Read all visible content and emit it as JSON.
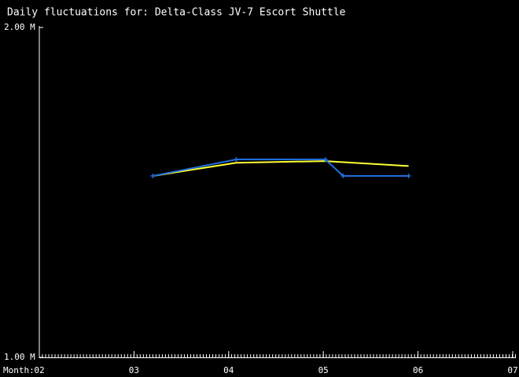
{
  "chart_data": {
    "type": "line",
    "title": "Daily fluctuations for: Delta-Class JV-7 Escort Shuttle",
    "xlabel": "Month:",
    "xlim": [
      2,
      7
    ],
    "xticks": [
      {
        "value": 2,
        "label": "02"
      },
      {
        "value": 3,
        "label": "03"
      },
      {
        "value": 4,
        "label": "04"
      },
      {
        "value": 5,
        "label": "05"
      },
      {
        "value": 6,
        "label": "06"
      },
      {
        "value": 7,
        "label": "07"
      }
    ],
    "ylim": [
      1.0,
      2.0
    ],
    "yticks": [
      {
        "value": 1.0,
        "label": "1.00 M"
      },
      {
        "value": 2.0,
        "label": "2.00 M"
      }
    ],
    "series": [
      {
        "color": "#ffff33",
        "markers": false,
        "x": [
          3.2,
          4.08,
          5.02,
          5.9
        ],
        "values": [
          1.55,
          1.59,
          1.595,
          1.58
        ]
      },
      {
        "color": "#1e6fd9",
        "markers": true,
        "x": [
          3.2,
          4.08,
          5.02,
          5.21,
          5.9
        ],
        "values": [
          1.55,
          1.6,
          1.6,
          1.55,
          1.55
        ]
      }
    ]
  }
}
